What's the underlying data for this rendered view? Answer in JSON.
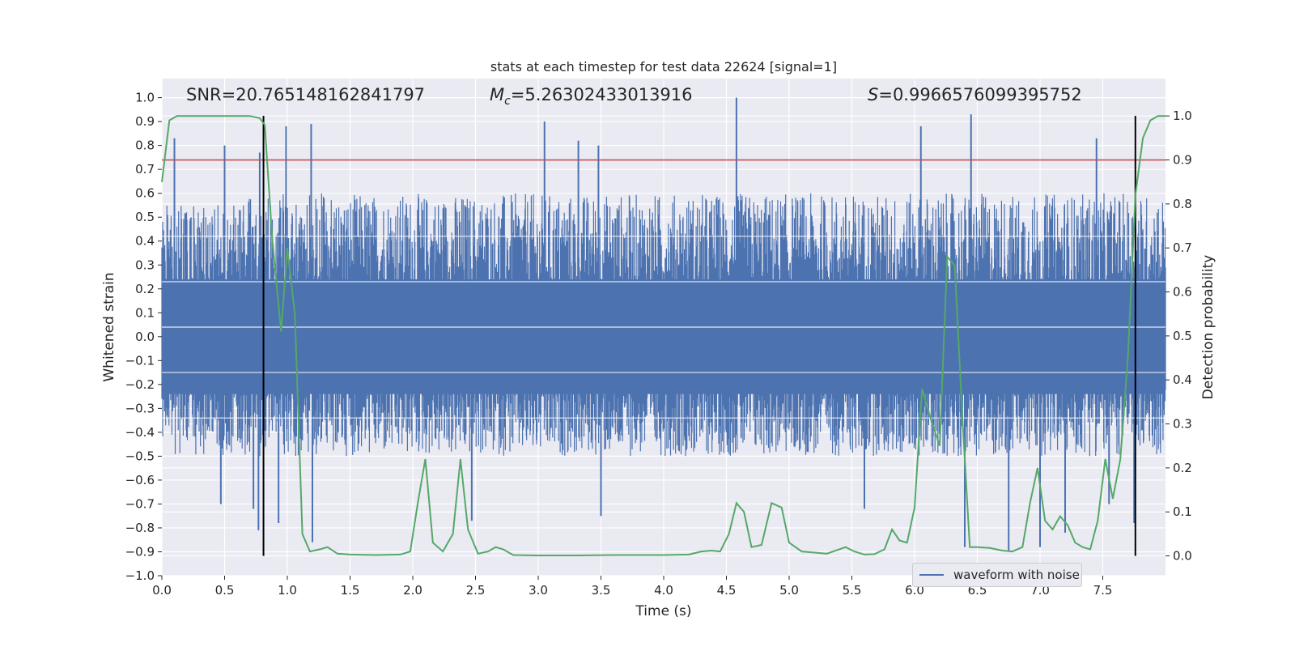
{
  "chart_data": {
    "type": "line",
    "title": "stats at each timestep for test data 22624 [signal=1]",
    "xlabel": "Time (s)",
    "ylabel_left": "Whitened strain",
    "ylabel_right": "Detection probability",
    "xlim": [
      0.0,
      8.0
    ],
    "ylim_left": [
      -1.0,
      1.08
    ],
    "ylim_right": [
      -0.045,
      1.085
    ],
    "x_ticks": [
      "0.0",
      "0.5",
      "1.0",
      "1.5",
      "2.0",
      "2.5",
      "3.0",
      "3.5",
      "4.0",
      "4.5",
      "5.0",
      "5.5",
      "6.0",
      "6.5",
      "7.0",
      "7.5"
    ],
    "y_ticks_left": [
      "-1.0",
      "-0.9",
      "-0.8",
      "-0.7",
      "-0.6",
      "-0.5",
      "-0.4",
      "-0.3",
      "-0.2",
      "-0.1",
      "0.0",
      "0.1",
      "0.2",
      "0.3",
      "0.4",
      "0.5",
      "0.6",
      "0.7",
      "0.8",
      "0.9",
      "1.0"
    ],
    "y_ticks_right": [
      "0.0",
      "0.1",
      "0.2",
      "0.3",
      "0.4",
      "0.5",
      "0.6",
      "0.7",
      "0.8",
      "0.9",
      "1.0"
    ],
    "grid": true,
    "legend_position": "lower-right",
    "annotations": {
      "snr": "SNR=20.765148162841797",
      "mc_symbol": "M",
      "mc_subscript": "c",
      "mc_value": "=5.26302433013916",
      "s_symbol": "S",
      "s_value": "=0.9966576099395752"
    },
    "vertical_lines_x": [
      0.81,
      7.76
    ],
    "threshold_right": 0.9,
    "series": [
      {
        "name": "waveform with noise",
        "axis": "left",
        "style": "noise",
        "color": "#4c72b0",
        "envelope": [
          {
            "x": 0.0,
            "upper": 0.55,
            "lower": -0.5
          },
          {
            "x": 1.0,
            "upper": 0.6,
            "lower": -0.5
          },
          {
            "x": 2.0,
            "upper": 0.6,
            "lower": -0.5
          },
          {
            "x": 3.0,
            "upper": 0.6,
            "lower": -0.5
          },
          {
            "x": 4.0,
            "upper": 0.6,
            "lower": -0.5
          },
          {
            "x": 5.0,
            "upper": 0.6,
            "lower": -0.5
          },
          {
            "x": 6.0,
            "upper": 0.6,
            "lower": -0.5
          },
          {
            "x": 7.0,
            "upper": 0.6,
            "lower": -0.5
          },
          {
            "x": 8.0,
            "upper": 0.6,
            "lower": -0.5
          }
        ],
        "peaks": [
          {
            "x": 0.1,
            "y": 0.83
          },
          {
            "x": 0.5,
            "y": 0.8
          },
          {
            "x": 0.78,
            "y": 0.77
          },
          {
            "x": 0.99,
            "y": 0.88
          },
          {
            "x": 1.19,
            "y": 0.89
          },
          {
            "x": 3.05,
            "y": 0.9
          },
          {
            "x": 3.32,
            "y": 0.82
          },
          {
            "x": 3.48,
            "y": 0.8
          },
          {
            "x": 4.58,
            "y": 1.0
          },
          {
            "x": 6.05,
            "y": 0.88
          },
          {
            "x": 6.45,
            "y": 0.93
          },
          {
            "x": 7.45,
            "y": 0.83
          },
          {
            "x": 0.47,
            "y": -0.7
          },
          {
            "x": 0.73,
            "y": -0.72
          },
          {
            "x": 0.77,
            "y": -0.81
          },
          {
            "x": 0.93,
            "y": -0.78
          },
          {
            "x": 1.2,
            "y": -0.86
          },
          {
            "x": 2.47,
            "y": -0.77
          },
          {
            "x": 3.5,
            "y": -0.75
          },
          {
            "x": 5.6,
            "y": -0.72
          },
          {
            "x": 6.4,
            "y": -0.88
          },
          {
            "x": 6.75,
            "y": -0.9
          },
          {
            "x": 7.0,
            "y": -0.88
          },
          {
            "x": 7.2,
            "y": -0.82
          },
          {
            "x": 7.55,
            "y": -0.7
          },
          {
            "x": 7.75,
            "y": -0.78
          }
        ]
      },
      {
        "name": "",
        "axis": "right",
        "style": "line",
        "color": "#55a868",
        "x": [
          0.0,
          0.06,
          0.12,
          0.25,
          0.5,
          0.7,
          0.78,
          0.82,
          0.88,
          0.95,
          1.0,
          1.06,
          1.12,
          1.18,
          1.26,
          1.32,
          1.4,
          1.5,
          1.7,
          1.9,
          1.98,
          2.04,
          2.1,
          2.16,
          2.24,
          2.32,
          2.38,
          2.44,
          2.52,
          2.6,
          2.66,
          2.72,
          2.8,
          3.0,
          3.3,
          3.6,
          3.8,
          4.0,
          4.2,
          4.3,
          4.38,
          4.45,
          4.52,
          4.58,
          4.64,
          4.7,
          4.78,
          4.86,
          4.94,
          5.0,
          5.1,
          5.3,
          5.45,
          5.52,
          5.6,
          5.68,
          5.76,
          5.82,
          5.88,
          5.94,
          6.0,
          6.06,
          6.12,
          6.2,
          6.26,
          6.32,
          6.38,
          6.44,
          6.5,
          6.6,
          6.7,
          6.78,
          6.86,
          6.92,
          6.98,
          7.04,
          7.1,
          7.16,
          7.22,
          7.28,
          7.34,
          7.4,
          7.46,
          7.52,
          7.58,
          7.64,
          7.7,
          7.76,
          7.82,
          7.88,
          7.94,
          8.0
        ],
        "values": [
          0.85,
          0.99,
          1.0,
          1.0,
          1.0,
          1.0,
          0.995,
          0.98,
          0.72,
          0.51,
          0.7,
          0.55,
          0.05,
          0.01,
          0.015,
          0.02,
          0.005,
          0.003,
          0.002,
          0.003,
          0.01,
          0.12,
          0.22,
          0.03,
          0.01,
          0.05,
          0.22,
          0.06,
          0.005,
          0.01,
          0.02,
          0.015,
          0.002,
          0.001,
          0.001,
          0.002,
          0.002,
          0.002,
          0.003,
          0.01,
          0.012,
          0.01,
          0.05,
          0.12,
          0.1,
          0.02,
          0.025,
          0.12,
          0.11,
          0.03,
          0.01,
          0.005,
          0.02,
          0.01,
          0.003,
          0.004,
          0.015,
          0.06,
          0.035,
          0.03,
          0.11,
          0.38,
          0.32,
          0.25,
          0.68,
          0.66,
          0.32,
          0.02,
          0.02,
          0.018,
          0.012,
          0.01,
          0.02,
          0.12,
          0.2,
          0.08,
          0.06,
          0.09,
          0.07,
          0.03,
          0.02,
          0.015,
          0.08,
          0.22,
          0.13,
          0.22,
          0.45,
          0.82,
          0.95,
          0.99,
          1.0,
          1.0
        ]
      },
      {
        "name": "",
        "axis": "right",
        "style": "hline",
        "color": "#c44e52",
        "y": 0.9
      }
    ]
  }
}
